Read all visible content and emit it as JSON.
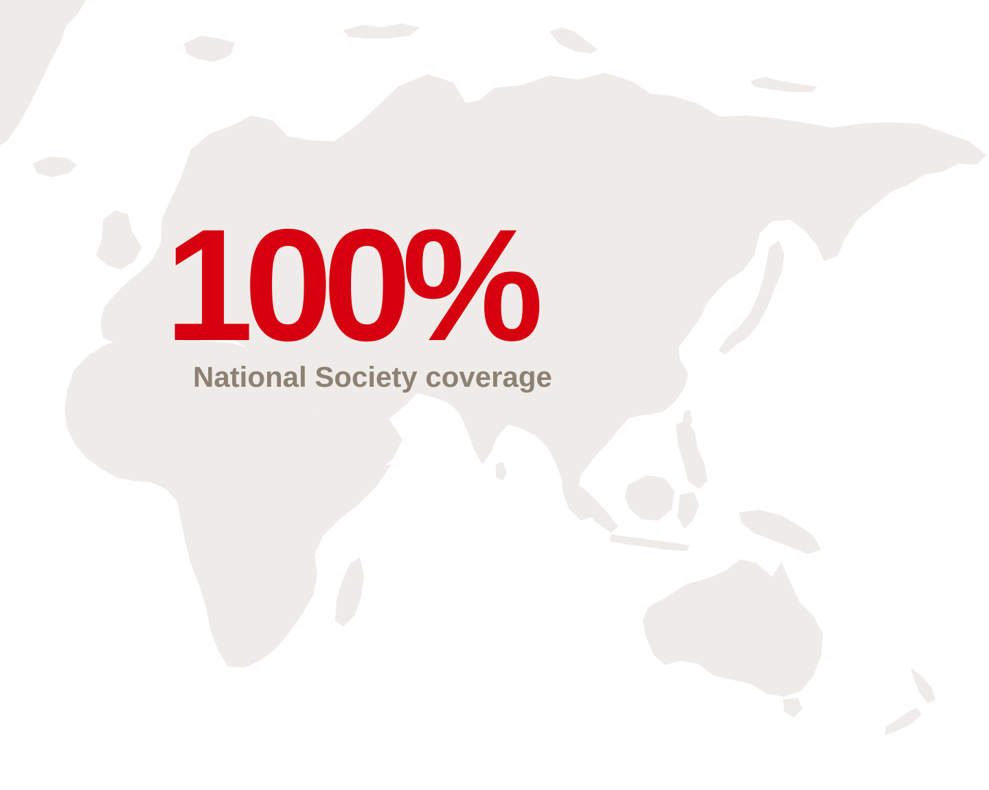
{
  "stat": {
    "value": "100%",
    "label": "National Society coverage"
  },
  "colors": {
    "background": "#ffffff",
    "land": "#efebe8",
    "value": "#d7000f",
    "label": "#8d8173"
  }
}
